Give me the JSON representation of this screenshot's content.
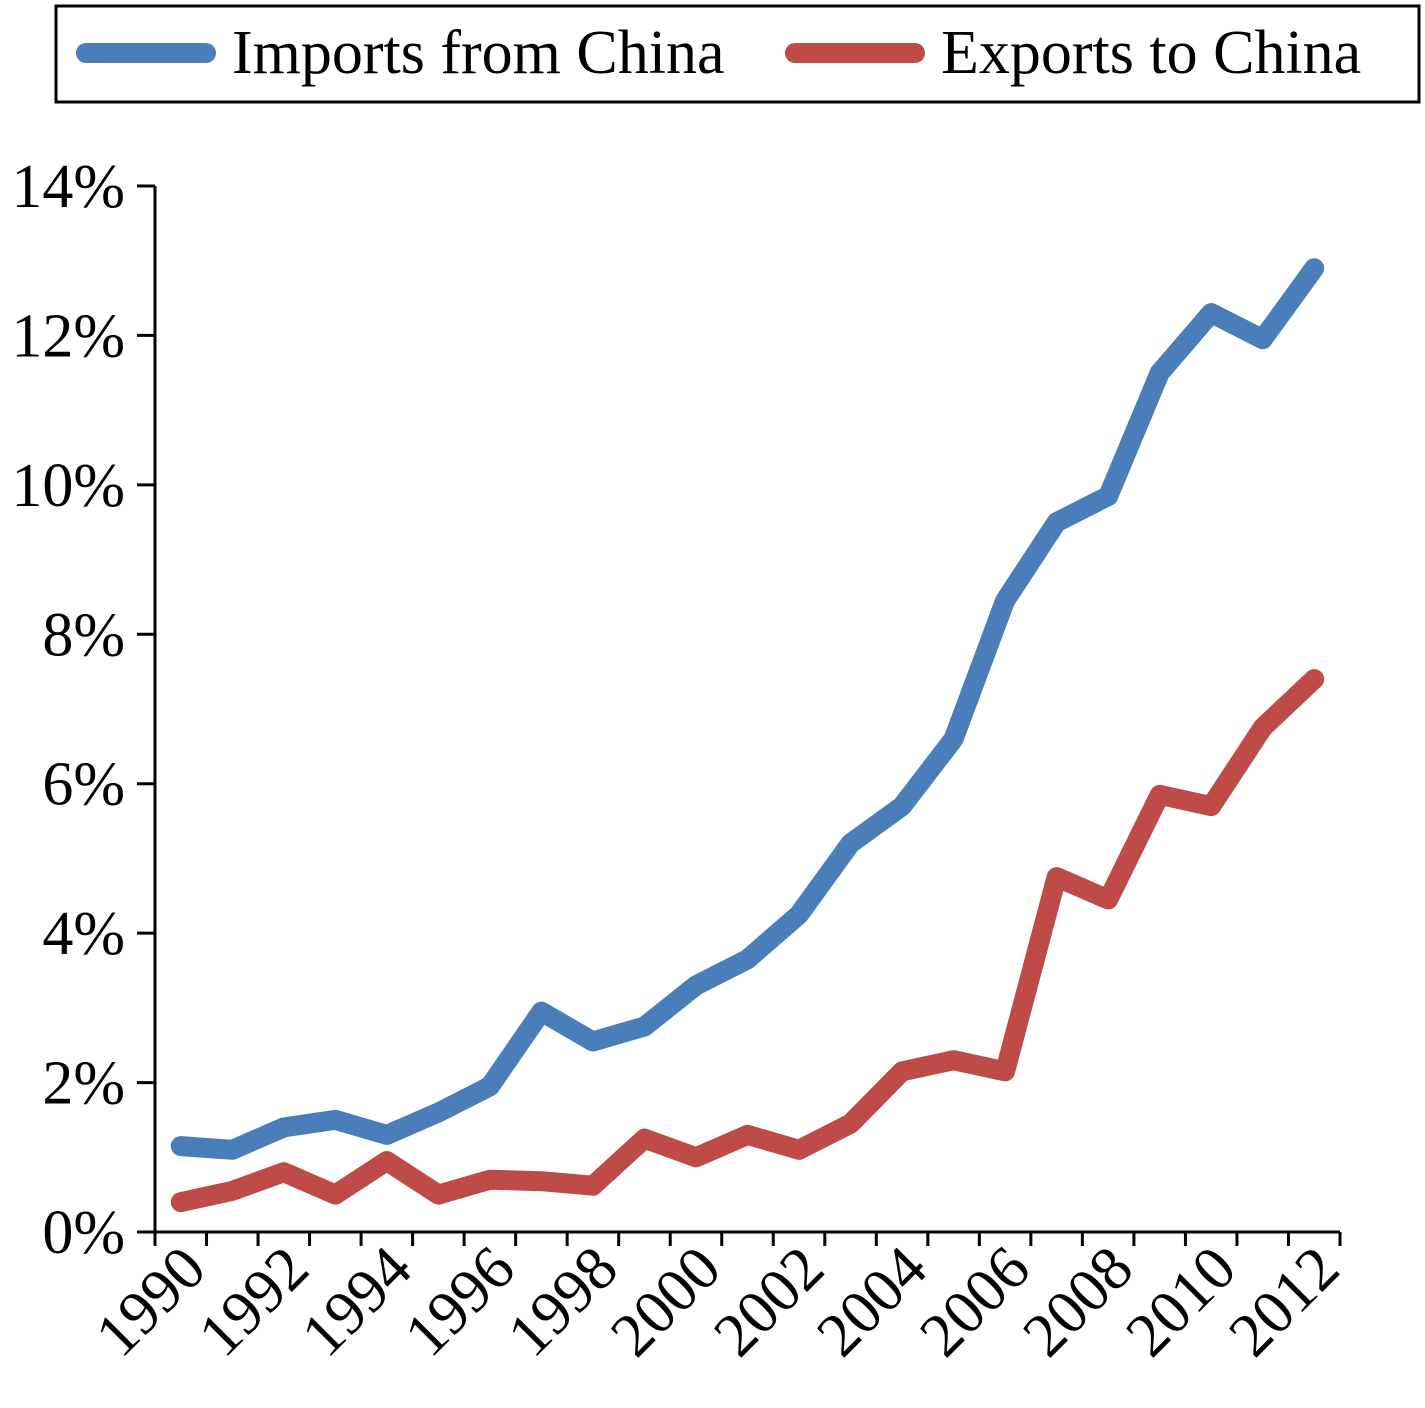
{
  "chart_data": {
    "type": "line",
    "x": [
      1990,
      1991,
      1992,
      1993,
      1994,
      1995,
      1996,
      1997,
      1998,
      1999,
      2000,
      2001,
      2002,
      2003,
      2004,
      2005,
      2006,
      2007,
      2008,
      2009,
      2010,
      2011,
      2012
    ],
    "x_tick_labels": [
      "1990",
      "1992",
      "1994",
      "1996",
      "1998",
      "2000",
      "2002",
      "2004",
      "2006",
      "2008",
      "2010",
      "2012"
    ],
    "y_tick_labels": [
      "0%",
      "2%",
      "4%",
      "6%",
      "8%",
      "10%",
      "12%",
      "14%"
    ],
    "y_ticks": [
      0,
      2,
      4,
      6,
      8,
      10,
      12,
      14
    ],
    "ylim": [
      0,
      14
    ],
    "xlim": [
      1989.5,
      2012.5
    ],
    "legend_position": "top",
    "grid": false,
    "series": [
      {
        "name": "Imports from China",
        "color": "#4a7ebb",
        "values": [
          1.15,
          1.1,
          1.4,
          1.5,
          1.3,
          1.6,
          1.95,
          2.95,
          2.55,
          2.75,
          3.3,
          3.65,
          4.25,
          5.2,
          5.7,
          6.6,
          8.45,
          9.5,
          9.85,
          11.5,
          12.3,
          11.95,
          12.9
        ]
      },
      {
        "name": "Exports to China",
        "color": "#be4b48",
        "values": [
          0.4,
          0.55,
          0.8,
          0.5,
          0.95,
          0.5,
          0.7,
          0.68,
          0.62,
          1.25,
          1.0,
          1.3,
          1.1,
          1.45,
          2.15,
          2.3,
          2.15,
          4.75,
          4.45,
          5.85,
          5.7,
          6.75,
          7.4
        ]
      }
    ]
  }
}
